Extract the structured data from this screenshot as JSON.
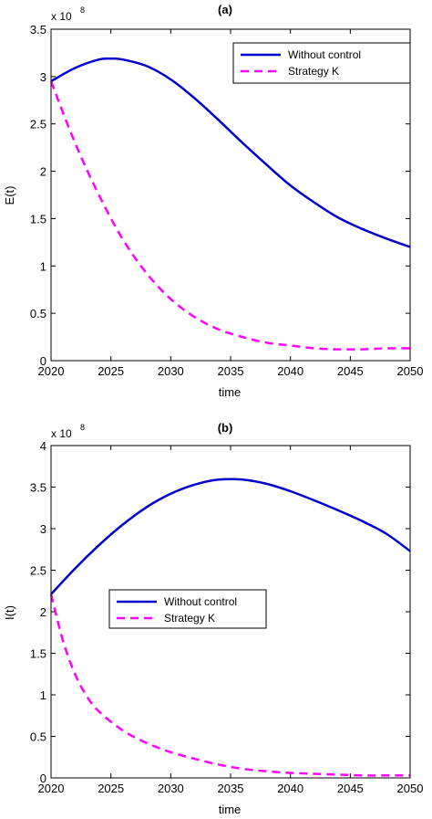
{
  "chart_data": [
    {
      "type": "line",
      "title": "(a)",
      "xlabel": "time",
      "ylabel": "E(t)",
      "y_multiplier_base": "x 10",
      "y_multiplier_exp": "8",
      "xlim": [
        2020,
        2050
      ],
      "ylim": [
        0,
        3.5
      ],
      "xticks": [
        "2020",
        "2025",
        "2030",
        "2035",
        "2040",
        "2045",
        "2050"
      ],
      "yticks": [
        "0",
        "0.5",
        "1",
        "1.5",
        "2",
        "2.5",
        "3",
        "3.5"
      ],
      "grid": false,
      "legend_position": "top-right",
      "series": [
        {
          "name": "Without control",
          "color": "#0000CC",
          "style": "solid",
          "x": [
            2020,
            2022,
            2024,
            2025,
            2026,
            2028,
            2030,
            2032,
            2034,
            2036,
            2038,
            2040,
            2042,
            2044,
            2046,
            2048,
            2050
          ],
          "values": [
            2.95,
            3.09,
            3.18,
            3.19,
            3.18,
            3.11,
            2.97,
            2.77,
            2.54,
            2.3,
            2.07,
            1.85,
            1.67,
            1.51,
            1.39,
            1.29,
            1.2
          ]
        },
        {
          "name": "Strategy K",
          "color": "#FF00FF",
          "style": "dashed",
          "x": [
            2020,
            2022,
            2024,
            2026,
            2028,
            2030,
            2032,
            2034,
            2036,
            2038,
            2040,
            2042,
            2044,
            2046,
            2048,
            2050
          ],
          "values": [
            2.95,
            2.3,
            1.75,
            1.28,
            0.92,
            0.65,
            0.46,
            0.33,
            0.25,
            0.19,
            0.16,
            0.13,
            0.12,
            0.12,
            0.13,
            0.13
          ]
        }
      ]
    },
    {
      "type": "line",
      "title": "(b)",
      "xlabel": "time",
      "ylabel": "I(t)",
      "y_multiplier_base": "x 10",
      "y_multiplier_exp": "8",
      "xlim": [
        2020,
        2050
      ],
      "ylim": [
        0,
        4
      ],
      "xticks": [
        "2020",
        "2025",
        "2030",
        "2035",
        "2040",
        "2045",
        "2050"
      ],
      "yticks": [
        "0",
        "0.5",
        "1",
        "1.5",
        "2",
        "2.5",
        "3",
        "3.5",
        "4"
      ],
      "grid": false,
      "legend_position": "middle-left",
      "series": [
        {
          "name": "Without control",
          "color": "#0000CC",
          "style": "solid",
          "x": [
            2020,
            2022,
            2024,
            2026,
            2028,
            2030,
            2032,
            2034,
            2036,
            2038,
            2040,
            2042,
            2044,
            2046,
            2048,
            2050
          ],
          "values": [
            2.21,
            2.52,
            2.8,
            3.05,
            3.26,
            3.42,
            3.53,
            3.59,
            3.59,
            3.54,
            3.45,
            3.34,
            3.22,
            3.09,
            2.94,
            2.73
          ]
        },
        {
          "name": "Strategy K",
          "color": "#FF00FF",
          "style": "dashed",
          "x": [
            2020,
            2021,
            2022,
            2023,
            2024,
            2026,
            2028,
            2030,
            2032,
            2034,
            2036,
            2038,
            2040,
            2042,
            2044,
            2046,
            2048,
            2050
          ],
          "values": [
            2.21,
            1.65,
            1.25,
            0.98,
            0.8,
            0.57,
            0.42,
            0.31,
            0.23,
            0.16,
            0.11,
            0.08,
            0.06,
            0.05,
            0.04,
            0.03,
            0.03,
            0.03
          ]
        }
      ]
    }
  ]
}
